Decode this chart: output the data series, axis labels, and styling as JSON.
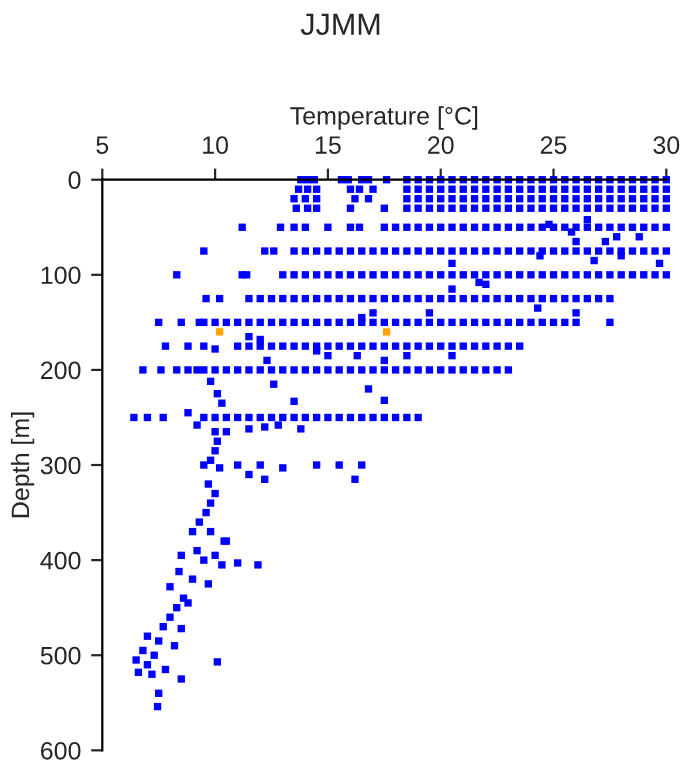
{
  "chart_data": {
    "type": "scatter",
    "title": "JJMM",
    "xlabel": "Temperature [°C]",
    "ylabel": "Depth [m]",
    "xlim": [
      5,
      30
    ],
    "xticks": [
      5,
      10,
      15,
      20,
      25,
      30
    ],
    "ylim": [
      600,
      0
    ],
    "yticks": [
      0,
      100,
      200,
      300,
      400,
      500,
      600
    ],
    "marker": "square",
    "series": [
      {
        "color": "#0000ff",
        "x": [
          13.8,
          14.1,
          14.4,
          15.6,
          15.9,
          16.5,
          16.8,
          17.6,
          18.5,
          19,
          19.5,
          20,
          20.5,
          21,
          21.5,
          22,
          22.5,
          23,
          23.5,
          24,
          24.5,
          25,
          25.5,
          26,
          26.5,
          27,
          27.5,
          28,
          28.5,
          29,
          29.5,
          30
        ],
        "values": [
          0,
          0,
          0,
          0,
          0,
          0,
          0,
          0,
          0,
          0,
          0,
          0,
          0,
          0,
          0,
          0,
          0,
          0,
          0,
          0,
          0,
          0,
          0,
          0,
          0,
          0,
          0,
          0,
          0,
          0,
          0,
          0
        ]
      },
      {
        "color": "#0000ff",
        "x": [
          13.7,
          14.1,
          14.5,
          16,
          16.4,
          17,
          18.5,
          19,
          19.5,
          20,
          20.5,
          21,
          21.5,
          22,
          22.5,
          23,
          23.5,
          24,
          24.5,
          25,
          25.5,
          26,
          26.5,
          27,
          27.5,
          28,
          28.5,
          29,
          29.5,
          30
        ],
        "values": [
          10,
          10,
          10,
          10,
          10,
          10,
          10,
          10,
          10,
          10,
          10,
          10,
          10,
          10,
          10,
          10,
          10,
          10,
          10,
          10,
          10,
          10,
          10,
          10,
          10,
          10,
          10,
          10,
          10,
          10
        ]
      },
      {
        "color": "#0000ff",
        "x": [
          13.5,
          14,
          14.5,
          16.2,
          16.8,
          18.5,
          19,
          19.5,
          20,
          20.5,
          21,
          21.5,
          22,
          22.5,
          23,
          23.5,
          24,
          24.5,
          25,
          25.5,
          26,
          26.5,
          27,
          27.5,
          28,
          28.5,
          29,
          29.5,
          30
        ],
        "values": [
          20,
          20,
          20,
          20,
          20,
          20,
          20,
          20,
          20,
          20,
          20,
          20,
          20,
          20,
          20,
          20,
          20,
          20,
          20,
          20,
          20,
          20,
          20,
          20,
          20,
          20,
          20,
          20,
          20
        ]
      },
      {
        "color": "#0000ff",
        "x": [
          13.6,
          14.1,
          14.5,
          16,
          17.5,
          18.5,
          19,
          19.5,
          20,
          20.5,
          21,
          21.5,
          22,
          22.5,
          23,
          23.5,
          24,
          24.5,
          25,
          25.5,
          26,
          26.5,
          27,
          27.5,
          28,
          28.5,
          29,
          29.5,
          30
        ],
        "values": [
          30,
          30,
          30,
          30,
          30,
          30,
          30,
          30,
          30,
          30,
          30,
          30,
          30,
          30,
          30,
          30,
          30,
          30,
          30,
          30,
          30,
          30,
          30,
          30,
          30,
          30,
          30,
          30,
          30
        ]
      },
      {
        "color": "#0000ff",
        "x": [
          11.2,
          12.9,
          13.5,
          14,
          15,
          16,
          16.4,
          17.5,
          18,
          18.5,
          19,
          19.5,
          20,
          20.5,
          21,
          21.5,
          22,
          22.5,
          23,
          23.5,
          24,
          24.5,
          25,
          25.5,
          26,
          26.5,
          27,
          27.5,
          28,
          28.5,
          29,
          29.5,
          30
        ],
        "values": [
          50,
          50,
          50,
          50,
          50,
          50,
          50,
          50,
          50,
          50,
          50,
          50,
          50,
          50,
          50,
          50,
          50,
          50,
          50,
          50,
          50,
          50,
          50,
          50,
          50,
          50,
          50,
          50,
          50,
          50,
          50,
          50,
          50
        ]
      },
      {
        "color": "#0000ff",
        "x": [
          9.5,
          12.2,
          12.6,
          13.5,
          14,
          14.5,
          15,
          15.5,
          16,
          16.5,
          17,
          17.5,
          18,
          18.5,
          19,
          19.5,
          20,
          20.5,
          21,
          21.5,
          22,
          22.5,
          23,
          23.5,
          24,
          24.5,
          25,
          25.5,
          26,
          26.5,
          27,
          27.5,
          28,
          28.5,
          29,
          29.5,
          30
        ],
        "values": [
          75,
          75,
          75,
          75,
          75,
          75,
          75,
          75,
          75,
          75,
          75,
          75,
          75,
          75,
          75,
          75,
          75,
          75,
          75,
          75,
          75,
          75,
          75,
          75,
          75,
          75,
          75,
          75,
          75,
          75,
          75,
          75,
          75,
          75,
          75,
          75,
          75
        ]
      },
      {
        "color": "#0000ff",
        "x": [
          8.3,
          11.2,
          11.4,
          13,
          13.5,
          14,
          14.5,
          15,
          15.5,
          16,
          16.5,
          17,
          17.5,
          18,
          18.5,
          19,
          19.5,
          20,
          20.5,
          21,
          21.5,
          22,
          22.5,
          23,
          23.5,
          24,
          24.5,
          25,
          25.5,
          26,
          26.5,
          27,
          27.5,
          28,
          28.5,
          29,
          29.5,
          30
        ],
        "values": [
          100,
          100,
          100,
          100,
          100,
          100,
          100,
          100,
          100,
          100,
          100,
          100,
          100,
          100,
          100,
          100,
          100,
          100,
          100,
          100,
          100,
          100,
          100,
          100,
          100,
          100,
          100,
          100,
          100,
          100,
          100,
          100,
          100,
          100,
          100,
          100,
          100,
          100
        ]
      },
      {
        "color": "#0000ff",
        "x": [
          9.6,
          10.2,
          11.5,
          12,
          12.5,
          13,
          13.5,
          14,
          14.5,
          15,
          15.5,
          16,
          16.5,
          17,
          17.5,
          18,
          18.5,
          19,
          19.5,
          20,
          20.5,
          21,
          21.5,
          22,
          22.5,
          23,
          23.5,
          24,
          24.5,
          25,
          25.5,
          26,
          26.5,
          27,
          27.5
        ],
        "values": [
          125,
          125,
          125,
          125,
          125,
          125,
          125,
          125,
          125,
          125,
          125,
          125,
          125,
          125,
          125,
          125,
          125,
          125,
          125,
          125,
          125,
          125,
          125,
          125,
          125,
          125,
          125,
          125,
          125,
          125,
          125,
          125,
          125,
          125,
          125
        ]
      },
      {
        "color": "#0000ff",
        "x": [
          7.5,
          8.5,
          9.3,
          9.5,
          10,
          10.5,
          11,
          11.5,
          12,
          12.5,
          13,
          13.5,
          14,
          14.5,
          15,
          15.5,
          16,
          16.5,
          17,
          17.5,
          18,
          18.5,
          19,
          19.5,
          20,
          20.5,
          21,
          21.5,
          22,
          22.5,
          23,
          23.5,
          24,
          24.5,
          25,
          25.5,
          26
        ],
        "values": [
          150,
          150,
          150,
          150,
          150,
          150,
          150,
          150,
          150,
          150,
          150,
          150,
          150,
          150,
          150,
          150,
          150,
          150,
          150,
          150,
          150,
          150,
          150,
          150,
          150,
          150,
          150,
          150,
          150,
          150,
          150,
          150,
          150,
          150,
          150,
          150,
          150
        ]
      },
      {
        "color": "#0000ff",
        "x": [
          7.8,
          8.8,
          9.5,
          11,
          11.5,
          12,
          12.5,
          13,
          14,
          14.5,
          15,
          15.5,
          16,
          16.5,
          17,
          17.5,
          18,
          18.5,
          19,
          19.5,
          20,
          20.5,
          21,
          21.5,
          22,
          22.5,
          23,
          23.5
        ],
        "values": [
          175,
          175,
          175,
          175,
          175,
          175,
          175,
          175,
          175,
          175,
          175,
          175,
          175,
          175,
          175,
          175,
          175,
          175,
          175,
          175,
          175,
          175,
          175,
          175,
          175,
          175,
          175,
          175
        ]
      },
      {
        "color": "#0000ff",
        "x": [
          6.8,
          7.6,
          8.3,
          8.8,
          9.2,
          9.5,
          10,
          10.5,
          11,
          11.5,
          12,
          12.5,
          13,
          13.5,
          14,
          14.5,
          15,
          15.5,
          16,
          16.5,
          17,
          17.5,
          18,
          18.5,
          19,
          19.5,
          20,
          20.5,
          21,
          21.5,
          22,
          22.5,
          23
        ],
        "values": [
          200,
          200,
          200,
          200,
          200,
          200,
          200,
          200,
          200,
          200,
          200,
          200,
          200,
          200,
          200,
          200,
          200,
          200,
          200,
          200,
          200,
          200,
          200,
          200,
          200,
          200,
          200,
          200,
          200,
          200,
          200,
          200,
          200
        ]
      },
      {
        "color": "#0000ff",
        "x": [
          6.4,
          7,
          7.7,
          9.5,
          10,
          10.5,
          11,
          11.5,
          12,
          12.5,
          13,
          13.5,
          14,
          14.5,
          15,
          15.5,
          16,
          16.5,
          17,
          17.5,
          18,
          18.5,
          19
        ],
        "values": [
          250,
          250,
          250,
          250,
          250,
          250,
          250,
          250,
          250,
          250,
          250,
          250,
          250,
          250,
          250,
          250,
          250,
          250,
          250,
          250,
          250,
          250,
          250
        ]
      },
      {
        "color": "#0000ff",
        "x": [
          26.5,
          24.8,
          25.8,
          27.8,
          26,
          28.8,
          27.3,
          24.4,
          28,
          26.8,
          20.5,
          29.7,
          21.7,
          22,
          20.5,
          24.3,
          26,
          17,
          16.5,
          19.5,
          27.5,
          11.5,
          12,
          13.5,
          14.5,
          15,
          16.3,
          17.5,
          18.5,
          20.5,
          12.3,
          10,
          9.8,
          12.6,
          10.1,
          10.3,
          13.5,
          16.8,
          17.5,
          9.2,
          10,
          10.5,
          11.5,
          12.2,
          12.8,
          13.8,
          10.1,
          10,
          9.8,
          9.5,
          10.2,
          11,
          12,
          13,
          14.5,
          15.5,
          11.5,
          12.2,
          16.5,
          16.2,
          9.7,
          10,
          9.8,
          9.6,
          9.3,
          9,
          9.8,
          10.5,
          10.4,
          8.5,
          9.2,
          9.5,
          10,
          10.3,
          11,
          11.9,
          8.4,
          9,
          9.7,
          8,
          8.6,
          8.3,
          8.8,
          8,
          7.7,
          8.5,
          7,
          7.5,
          8.2,
          6.8,
          7.3,
          6.5,
          7,
          7.8,
          6.6,
          7.2,
          8.5,
          7.5,
          7.45,
          10.1,
          8.8
        ],
        "values": [
          42,
          47,
          55,
          60,
          65,
          60,
          65,
          80,
          80,
          85,
          88,
          88,
          108,
          110,
          115,
          135,
          140,
          140,
          145,
          140,
          150,
          165,
          168,
          175,
          180,
          185,
          185,
          190,
          185,
          185,
          190,
          178,
          212,
          215,
          225,
          235,
          233,
          220,
          232,
          258,
          265,
          265,
          262,
          260,
          258,
          262,
          275,
          285,
          295,
          300,
          303,
          300,
          300,
          303,
          300,
          300,
          310,
          315,
          300,
          315,
          320,
          330,
          340,
          350,
          360,
          370,
          370,
          380,
          380,
          395,
          390,
          400,
          395,
          405,
          403,
          405,
          412,
          420,
          425,
          428,
          440,
          450,
          445,
          460,
          470,
          472,
          480,
          485,
          490,
          495,
          500,
          505,
          510,
          515,
          518,
          520,
          525,
          540,
          554,
          507,
          245
        ]
      },
      {
        "color": "#ffa500",
        "x": [
          10.2,
          17.6
        ],
        "values": [
          160,
          160
        ]
      }
    ]
  }
}
